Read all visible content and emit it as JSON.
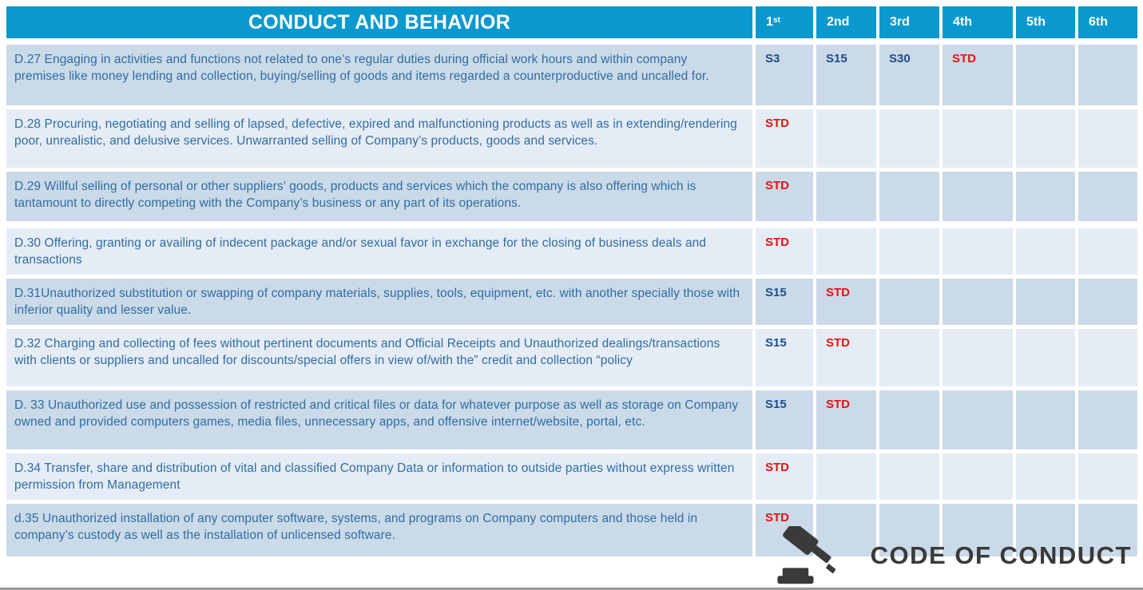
{
  "title": "CONDUCT AND BEHAVIOR",
  "columns": [
    {
      "base": "1",
      "sup": "st"
    },
    {
      "base": "2nd",
      "sup": ""
    },
    {
      "base": "3rd",
      "sup": ""
    },
    {
      "base": "4th",
      "sup": ""
    },
    {
      "base": "5th",
      "sup": ""
    },
    {
      "base": "6th",
      "sup": ""
    }
  ],
  "rows": [
    {
      "description": "D.27 Engaging in activities and functions not related to one’s regular duties during official work hours and within company premises like money lending and collection, buying/selling of goods and items  regarded a counterproductive and uncalled for.",
      "penalties": [
        "S3",
        "S15",
        "S30",
        "STD",
        "",
        ""
      ]
    },
    {
      "description": "D.28 Procuring, negotiating and selling of lapsed, defective, expired  and  malfunctioning  products as well as in extending/rendering poor, unrealistic, and  delusive services. Unwarranted selling of Company’s products, goods and services.",
      "penalties": [
        "STD",
        "",
        "",
        "",
        "",
        ""
      ]
    },
    {
      "description": "D.29 Willful  selling of personal or other suppliers’ goods, products and services which the company is also offering which is tantamount to directly competing with the Company’s business or any part of its operations.",
      "penalties": [
        "STD",
        "",
        "",
        "",
        "",
        ""
      ]
    },
    {
      "description": "D.30 Offering, granting or availing of indecent package and/or sexual favor in exchange for the closing of business deals and transactions",
      "penalties": [
        "STD",
        "",
        "",
        "",
        "",
        ""
      ]
    },
    {
      "description": "D.31Unauthorized substitution or swapping of company materials, supplies, tools, equipment, etc. with another specially those with inferior quality and lesser value.",
      "penalties": [
        "S15",
        "STD",
        "",
        "",
        "",
        ""
      ]
    },
    {
      "description": "D.32 Charging and collecting of fees  without pertinent documents and Official Receipts and Unauthorized dealings/transactions with clients or suppliers  and uncalled for discounts/special offers in view of/with the” credit and collection “policy",
      "penalties": [
        "S15",
        "STD",
        "",
        "",
        "",
        ""
      ]
    },
    {
      "description": "D. 33 Unauthorized use and possession of restricted and critical files or data for whatever purpose as well as storage on Company owned and provided computers games, media files, unnecessary apps, and offensive internet/website, portal, etc.",
      "penalties": [
        "S15",
        "STD",
        "",
        "",
        "",
        ""
      ]
    },
    {
      "description": "D.34  Transfer, share and distribution of vital and classified Company Data or information to outside parties without express written permission from Management",
      "penalties": [
        "STD",
        "",
        "",
        "",
        "",
        ""
      ]
    },
    {
      "description": "d.35  Unauthorized installation of any computer software, systems, and  programs on Company computers and those held in company’s custody as well as the installation of unlicensed software.",
      "penalties": [
        "STD",
        "",
        "",
        "",
        "",
        ""
      ]
    }
  ],
  "footer": {
    "brand": "CODE OF CONDUCT",
    "icon": "gavel-icon"
  },
  "colors": {
    "header_bg": "#0999CE",
    "row_dark": "#CBDAE8",
    "row_light": "#E6ECF5",
    "description_text": "#2E6DA4",
    "penalty_code": "#1E4D8C",
    "penalty_std": "#E8120F",
    "brand_text": "#3A3A3A"
  }
}
